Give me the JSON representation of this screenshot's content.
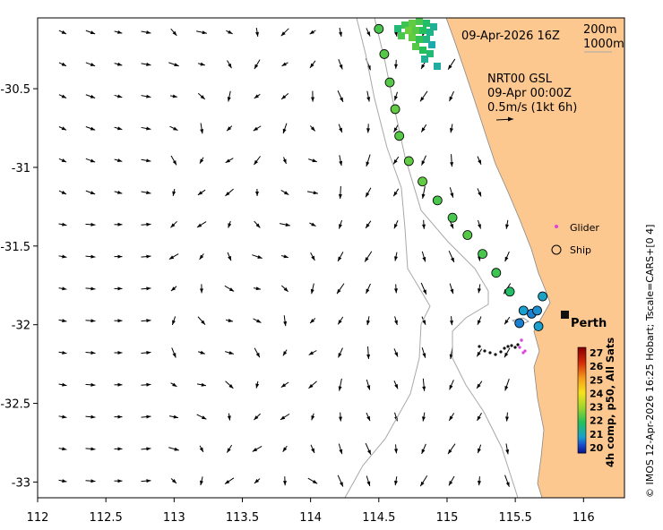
{
  "header": {
    "date_label": "09-Apr-2026 16Z",
    "isobath_200": "200m",
    "isobath_1000": "1000m"
  },
  "current_legend": {
    "product": "NRT00 GSL",
    "time": "09-Apr 00:00Z",
    "scale": "0.5m/s (1kt 6h)"
  },
  "markers_legend": {
    "glider": "Glider",
    "ship": "Ship"
  },
  "city": "Perth",
  "colorbar": {
    "title": "4h comp, p50, All Sats",
    "ticks": [
      "27",
      "26",
      "25",
      "24",
      "23",
      "22",
      "21",
      "20"
    ],
    "colors": [
      "#8b0000",
      "#d62d0a",
      "#f59a1c",
      "#f7e21c",
      "#9fd52b",
      "#24c05c",
      "#1b9fcf",
      "#1a4fd1",
      "#0c1a8f"
    ]
  },
  "credit": "© IMOS 12-Apr-2026 16:25 Hobart; Tscale=CARS+[0 4]",
  "axes": {
    "lon_ticks": [
      "112",
      "112.5",
      "113",
      "113.5",
      "114",
      "114.5",
      "115",
      "115.5",
      "116"
    ],
    "lat_ticks": [
      "-30.5",
      "-31",
      "-31.5",
      "-32",
      "-32.5",
      "-33"
    ],
    "lon_values": [
      112,
      112.5,
      113,
      113.5,
      114,
      114.5,
      115,
      115.5,
      116
    ],
    "lat_values": [
      -30.5,
      -31,
      -31.5,
      -32,
      -32.5,
      -33
    ],
    "lon_range": [
      112,
      116.3
    ],
    "lat_range": [
      -33.1,
      -30.05
    ]
  },
  "ship_track": [
    {
      "lon": 114.5,
      "lat": -30.12,
      "sst": 22.3
    },
    {
      "lon": 114.54,
      "lat": -30.28,
      "sst": 22.4
    },
    {
      "lon": 114.58,
      "lat": -30.46,
      "sst": 22.4
    },
    {
      "lon": 114.62,
      "lat": -30.63,
      "sst": 22.5
    },
    {
      "lon": 114.65,
      "lat": -30.8,
      "sst": 22.4
    },
    {
      "lon": 114.72,
      "lat": -30.96,
      "sst": 22.5
    },
    {
      "lon": 114.82,
      "lat": -31.09,
      "sst": 22.5
    },
    {
      "lon": 114.93,
      "lat": -31.21,
      "sst": 22.3
    },
    {
      "lon": 115.04,
      "lat": -31.32,
      "sst": 22.3
    },
    {
      "lon": 115.15,
      "lat": -31.43,
      "sst": 22.4
    },
    {
      "lon": 115.26,
      "lat": -31.55,
      "sst": 22.3
    },
    {
      "lon": 115.36,
      "lat": -31.67,
      "sst": 22.2
    },
    {
      "lon": 115.46,
      "lat": -31.79,
      "sst": 21.9
    },
    {
      "lon": 115.56,
      "lat": -31.91,
      "sst": 21.0
    },
    {
      "lon": 115.62,
      "lat": -31.93,
      "sst": 20.8
    },
    {
      "lon": 115.66,
      "lat": -31.91,
      "sst": 20.9
    },
    {
      "lon": 115.7,
      "lat": -31.82,
      "sst": 21.1
    },
    {
      "lon": 115.53,
      "lat": -31.99,
      "sst": 20.8
    },
    {
      "lon": 115.67,
      "lat": -32.01,
      "sst": 21.0
    }
  ]
}
